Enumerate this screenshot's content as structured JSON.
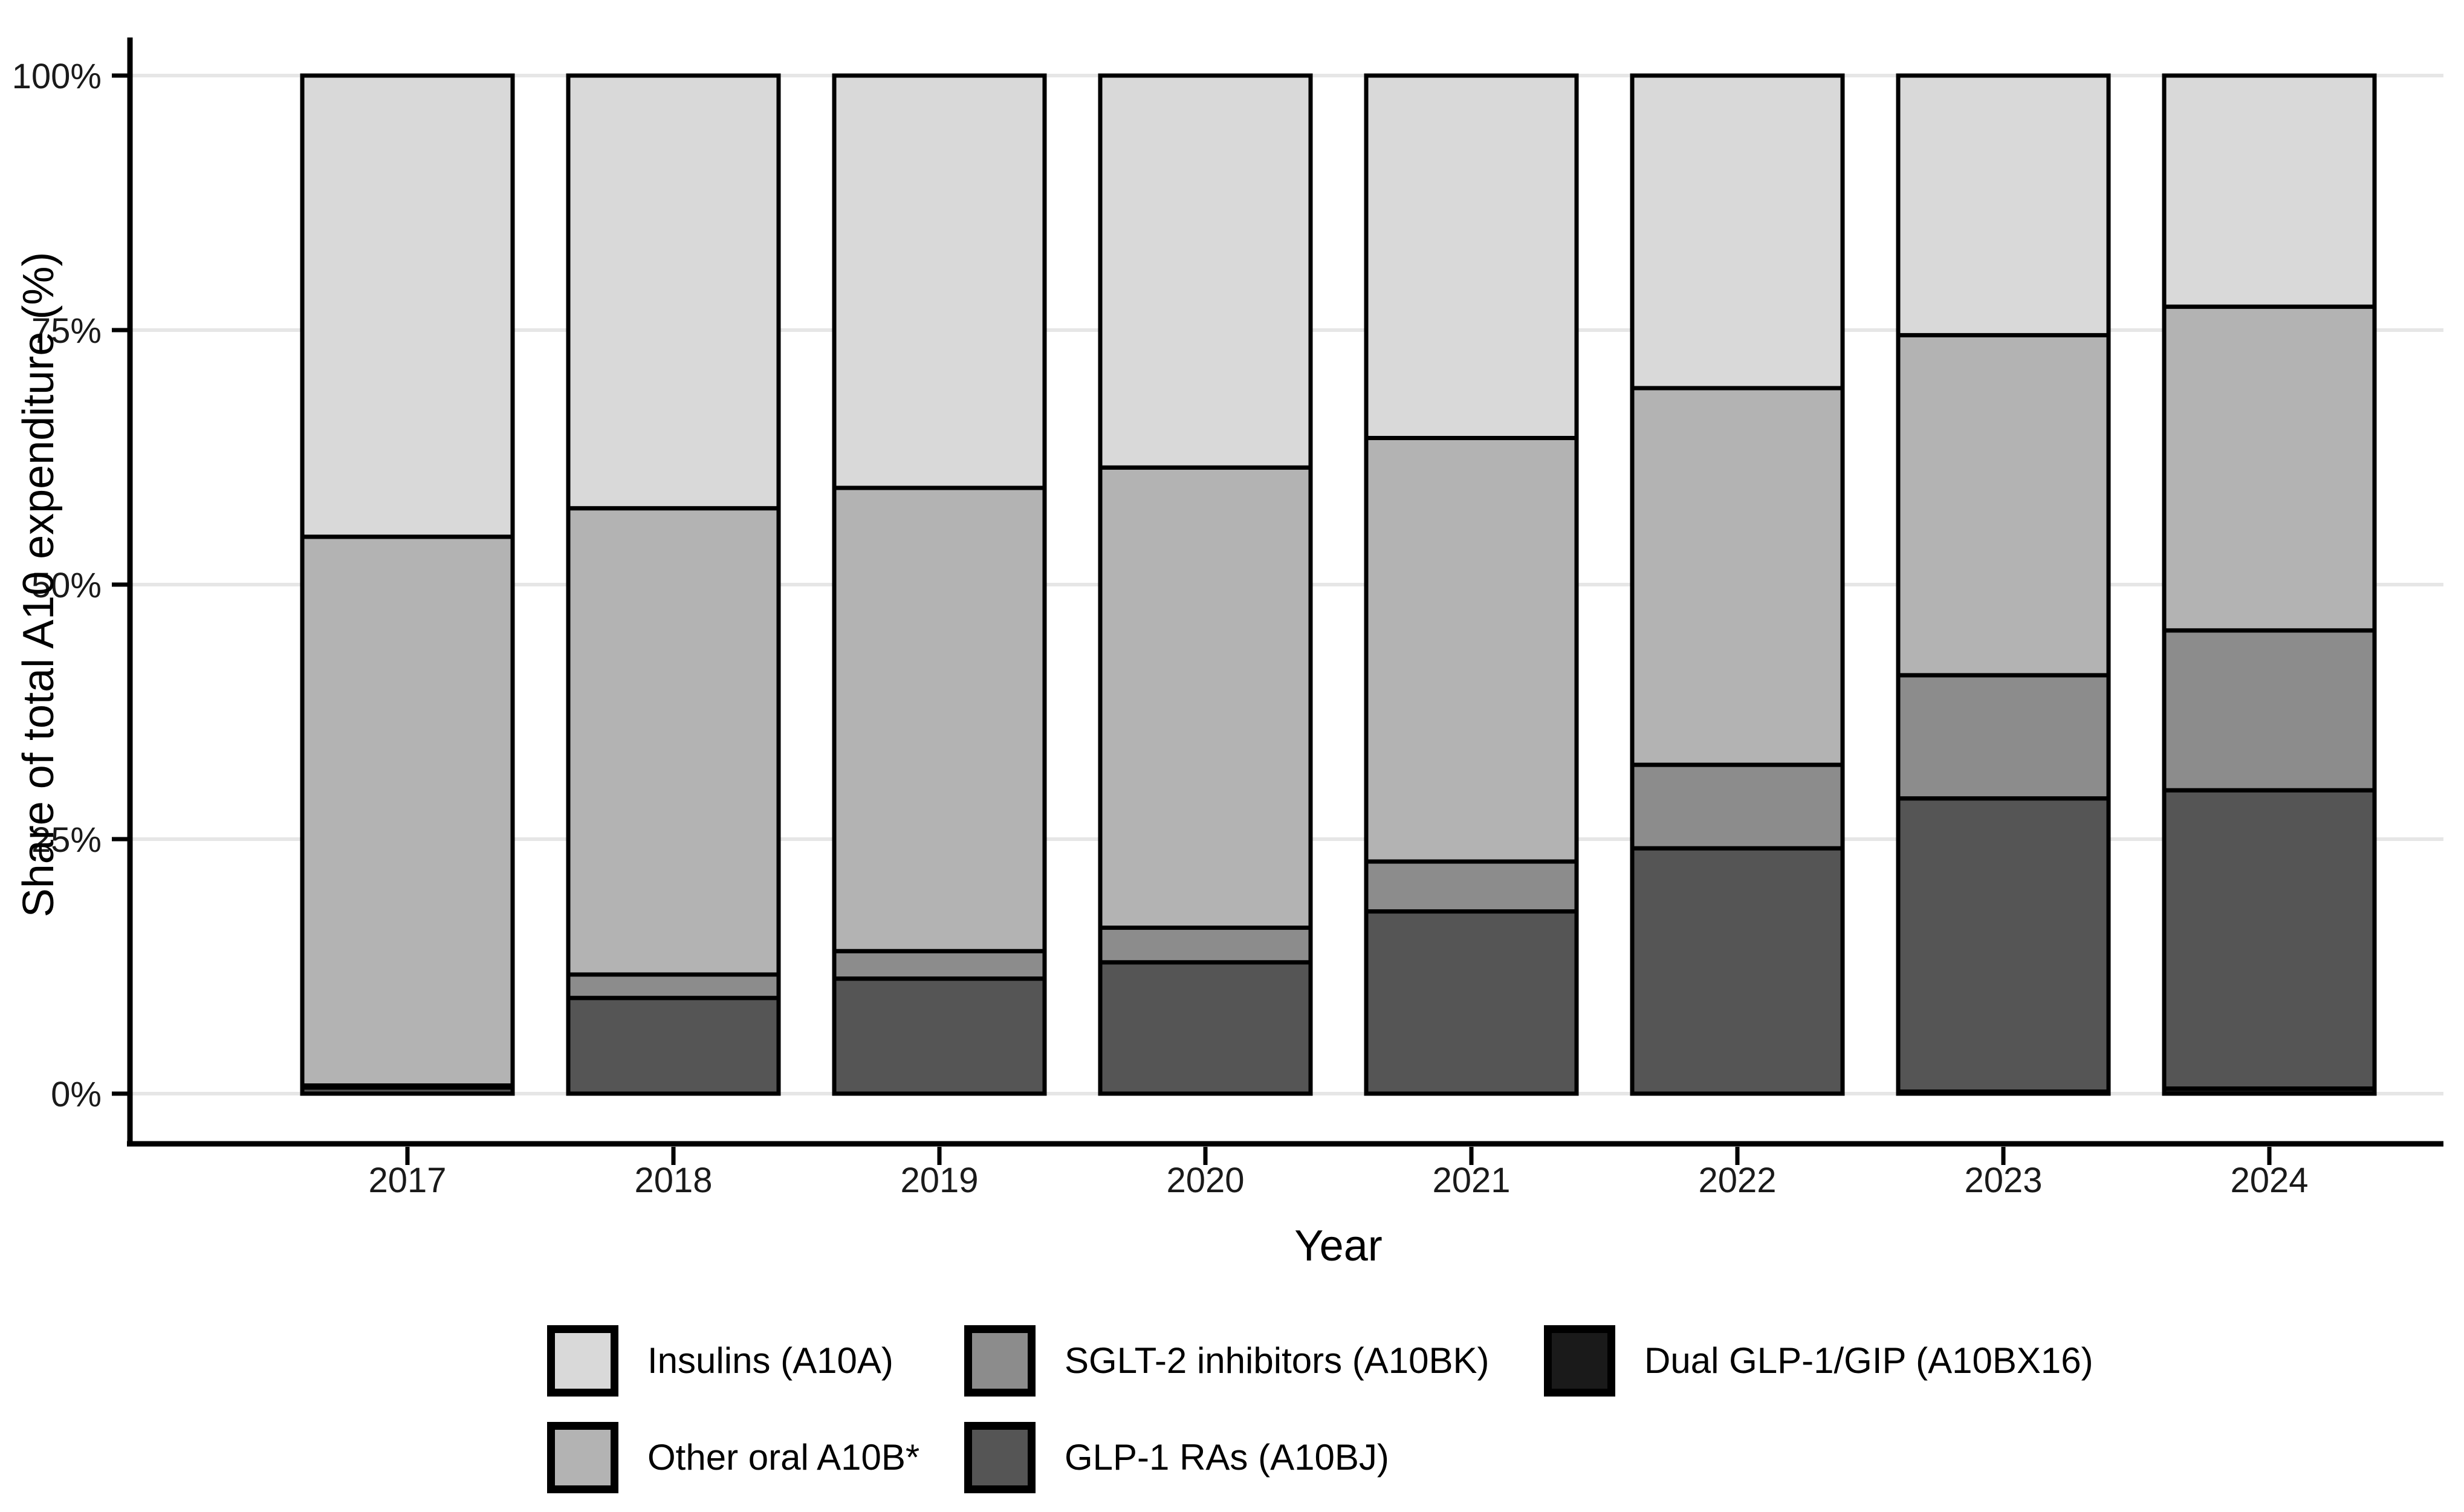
{
  "figure": {
    "background": "#ffffff"
  },
  "chart_data": {
    "type": "bar",
    "subtype": "stacked-100pct",
    "title": "",
    "xlabel": "Year",
    "ylabel": "Share of total A10 expenditure (%)",
    "categories": [
      "2017",
      "2018",
      "2019",
      "2020",
      "2021",
      "2022",
      "2023",
      "2024"
    ],
    "y_tick_labels": [
      "0%",
      "25%",
      "50%",
      "75%",
      "100%"
    ],
    "y_tick_values": [
      0,
      25,
      50,
      75,
      100
    ],
    "ylim": [
      0,
      100
    ],
    "grid": "horizontal-major-only",
    "bar_outline_color": "#000000",
    "series_stacked_bottom_to_top": [
      {
        "name": "Dual GLP-1/GIP (A10BX16)",
        "color": "#1a1a1a",
        "values": [
          0,
          0,
          0,
          0,
          0,
          0,
          0.2,
          0.5
        ]
      },
      {
        "name": "GLP-1 RAs (A10BJ)",
        "color": "#555555",
        "values": [
          0.6,
          9.4,
          11.3,
          12.9,
          17.9,
          24.1,
          28.8,
          29.3
        ]
      },
      {
        "name": "SGLT-2 inhibitors (A10BK)",
        "color": "#8c8c8c",
        "values": [
          0.2,
          2.3,
          2.7,
          3.4,
          4.9,
          8.2,
          12.1,
          15.7
        ]
      },
      {
        "name": "Other oral A10B*",
        "color": "#b3b3b3",
        "values": [
          53.9,
          45.8,
          45.5,
          45.2,
          41.6,
          37.0,
          33.4,
          31.8
        ]
      },
      {
        "name": "Insulins (A10A)",
        "color": "#d9d9d9",
        "values": [
          45.3,
          42.5,
          40.5,
          38.5,
          35.6,
          30.7,
          25.5,
          22.7
        ]
      }
    ],
    "legend": {
      "position": "bottom",
      "items": [
        {
          "label": "Insulins (A10A)",
          "color": "#d9d9d9",
          "row": 0,
          "col": 0
        },
        {
          "label": "SGLT-2 inhibitors (A10BK)",
          "color": "#8c8c8c",
          "row": 0,
          "col": 1
        },
        {
          "label": "Dual GLP-1/GIP (A10BX16)",
          "color": "#1a1a1a",
          "row": 0,
          "col": 2
        },
        {
          "label": "Other oral A10B*",
          "color": "#b3b3b3",
          "row": 1,
          "col": 0
        },
        {
          "label": "GLP-1 RAs (A10BJ)",
          "color": "#555555",
          "row": 1,
          "col": 1
        }
      ]
    }
  }
}
